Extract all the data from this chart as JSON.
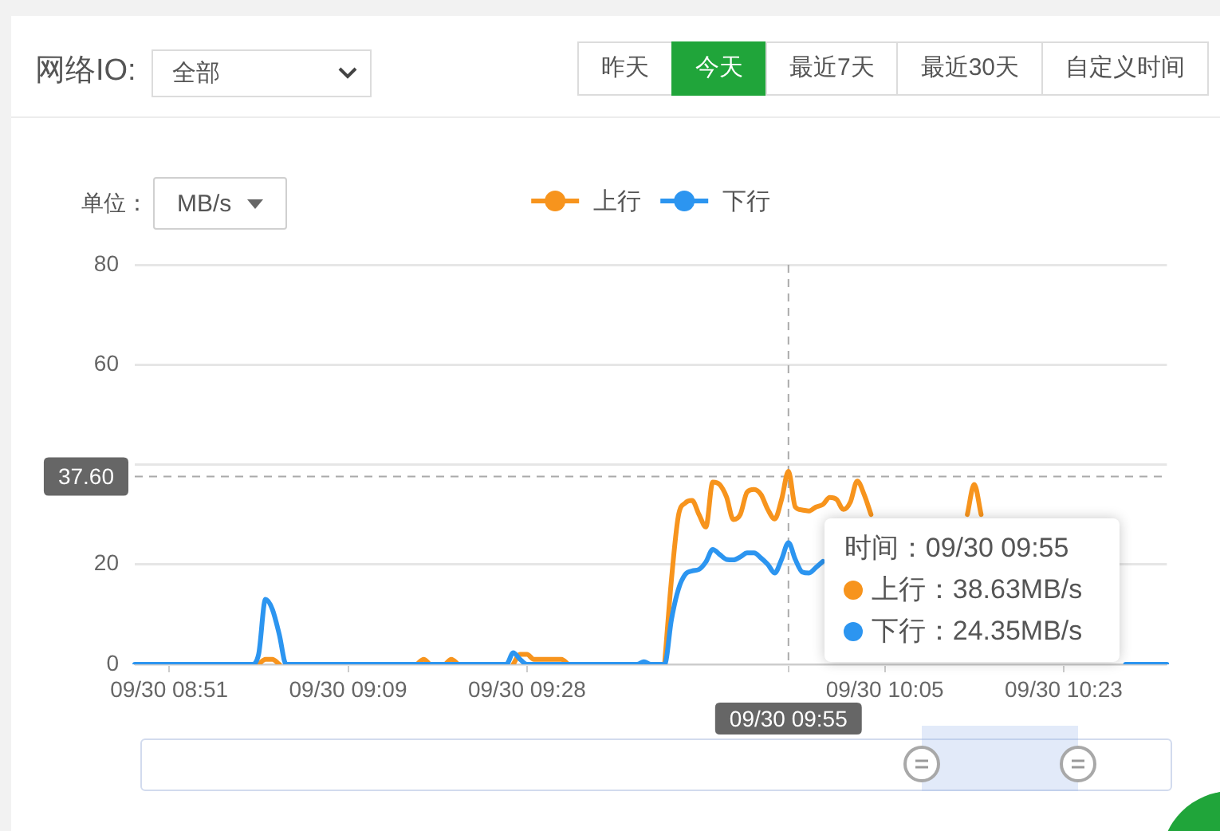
{
  "chart_data": {
    "type": "line",
    "title": "网络IO:",
    "annotations": [
      "全部",
      "昨天",
      "今天",
      "最近7天",
      "最近30天",
      "自定义时间",
      "单位：",
      "MB/s",
      "时间：09/30 09:55",
      "上行：38.63MB/s",
      "下行：24.35MB/s"
    ],
    "categories": [
      null,
      null,
      null,
      null,
      null,
      "09/30 08:51",
      null,
      null,
      null,
      null,
      null,
      null,
      null,
      null,
      null,
      null,
      null,
      null,
      null,
      null,
      null,
      null,
      null,
      null,
      null,
      null,
      null,
      null,
      null,
      null,
      null,
      "09/30 09:09",
      null,
      null,
      null,
      null,
      null,
      null,
      null,
      null,
      null,
      null,
      null,
      null,
      null,
      null,
      null,
      null,
      null,
      null,
      null,
      null,
      null,
      null,
      null,
      null,
      null,
      "09/30 09:28",
      null,
      null,
      null,
      null,
      null,
      null,
      null,
      null,
      null,
      null,
      null,
      null,
      null,
      null,
      null,
      null,
      null,
      null,
      null,
      null,
      null,
      null,
      null,
      null,
      null,
      null,
      null,
      null,
      null,
      null,
      null,
      null,
      null,
      null,
      null,
      null,
      null,
      "09/30 09:55",
      null,
      null,
      null,
      null,
      null,
      null,
      null,
      null,
      null,
      null,
      null,
      null,
      null,
      "09/30 10:05",
      null,
      null,
      null,
      null,
      null,
      null,
      null,
      null,
      null,
      null,
      null,
      null,
      null,
      null,
      null,
      null,
      null,
      null,
      null,
      null,
      null,
      null,
      null,
      null,
      null,
      "09/30 10:23",
      null,
      null,
      null,
      null,
      null,
      null,
      null,
      null,
      null,
      null,
      null,
      null,
      null,
      null,
      null
    ],
    "series": [
      {
        "name": "上行",
        "color": "#f7941d",
        "values": [
          null,
          null,
          null,
          null,
          null,
          null,
          null,
          null,
          null,
          null,
          null,
          null,
          null,
          null,
          null,
          null,
          null,
          null,
          0,
          1,
          1,
          0,
          null,
          null,
          null,
          null,
          null,
          null,
          null,
          null,
          null,
          null,
          null,
          null,
          null,
          null,
          null,
          null,
          null,
          null,
          null,
          0,
          1,
          0,
          0,
          0,
          1,
          0,
          null,
          null,
          null,
          null,
          null,
          null,
          null,
          0,
          2,
          2,
          1,
          1,
          1,
          1,
          1,
          0,
          null,
          null,
          null,
          null,
          null,
          null,
          null,
          null,
          null,
          null,
          null,
          null,
          null,
          0,
          17,
          29.7,
          32.3,
          32.8,
          30,
          27.5,
          36.5,
          36,
          33.5,
          29,
          30,
          34.5,
          35,
          34,
          31,
          29.1,
          33,
          38.63,
          31.5,
          30.9,
          30.7,
          31.5,
          32,
          33.4,
          33,
          31,
          32.5,
          36.7,
          34,
          30,
          null,
          null,
          null,
          null,
          null,
          null,
          null,
          null,
          null,
          null,
          null,
          null,
          null,
          30,
          36,
          30,
          null,
          null,
          null,
          null,
          null,
          null,
          null,
          null,
          null,
          null,
          null,
          null,
          null,
          null,
          null,
          null,
          null,
          null,
          null,
          null,
          null,
          null,
          null,
          null,
          null,
          null,
          null
        ]
      },
      {
        "name": "下行",
        "color": "#2c95f0",
        "values": [
          0,
          0,
          0,
          0,
          0,
          0,
          0,
          0,
          0,
          0,
          0,
          0,
          0,
          0,
          0,
          0,
          0,
          0,
          2,
          13,
          11,
          6,
          0,
          0,
          0,
          0,
          0,
          0,
          0,
          0,
          0,
          0,
          0,
          0,
          0,
          0,
          0,
          0,
          0,
          0,
          0,
          0,
          0,
          0,
          0,
          0,
          0,
          0,
          0,
          0,
          0,
          0,
          0,
          0,
          0,
          2.3,
          1,
          0,
          0,
          0,
          0,
          0,
          0,
          0,
          0,
          0,
          0,
          0,
          0,
          0,
          0,
          0,
          0,
          0,
          0.5,
          0,
          0,
          0,
          9,
          15,
          18,
          18.7,
          19,
          20.5,
          23,
          22,
          21,
          20.9,
          21.5,
          22.3,
          22.3,
          21.3,
          20,
          18.3,
          21,
          24.35,
          21,
          18.5,
          18.3,
          19.4,
          20.6,
          null,
          null,
          null,
          null,
          null,
          null,
          null,
          null,
          null,
          null,
          null,
          null,
          null,
          null,
          null,
          null,
          null,
          null,
          null,
          null,
          null,
          null,
          null,
          null,
          null,
          null,
          null,
          null,
          null,
          null,
          null,
          null,
          null,
          null,
          null,
          null,
          null,
          null,
          null,
          null,
          null,
          null,
          null,
          0,
          0,
          0,
          0,
          0,
          0,
          0
        ]
      }
    ],
    "ylim": [
      0,
      80
    ],
    "yticks": [
      0,
      20,
      {
        "value": 40,
        "label": null
      },
      60,
      80
    ],
    "grid": "y",
    "legend": "top",
    "marker": "none",
    "ref_lines": [
      {
        "axis": "x",
        "value": "09/30 09:55",
        "color": "#aaaaaa",
        "line_style": "dashed"
      },
      {
        "axis": "y",
        "value": 37.6,
        "label": "37.60",
        "color": "#aaaaaa",
        "line_style": "dashed"
      }
    ]
  }
}
